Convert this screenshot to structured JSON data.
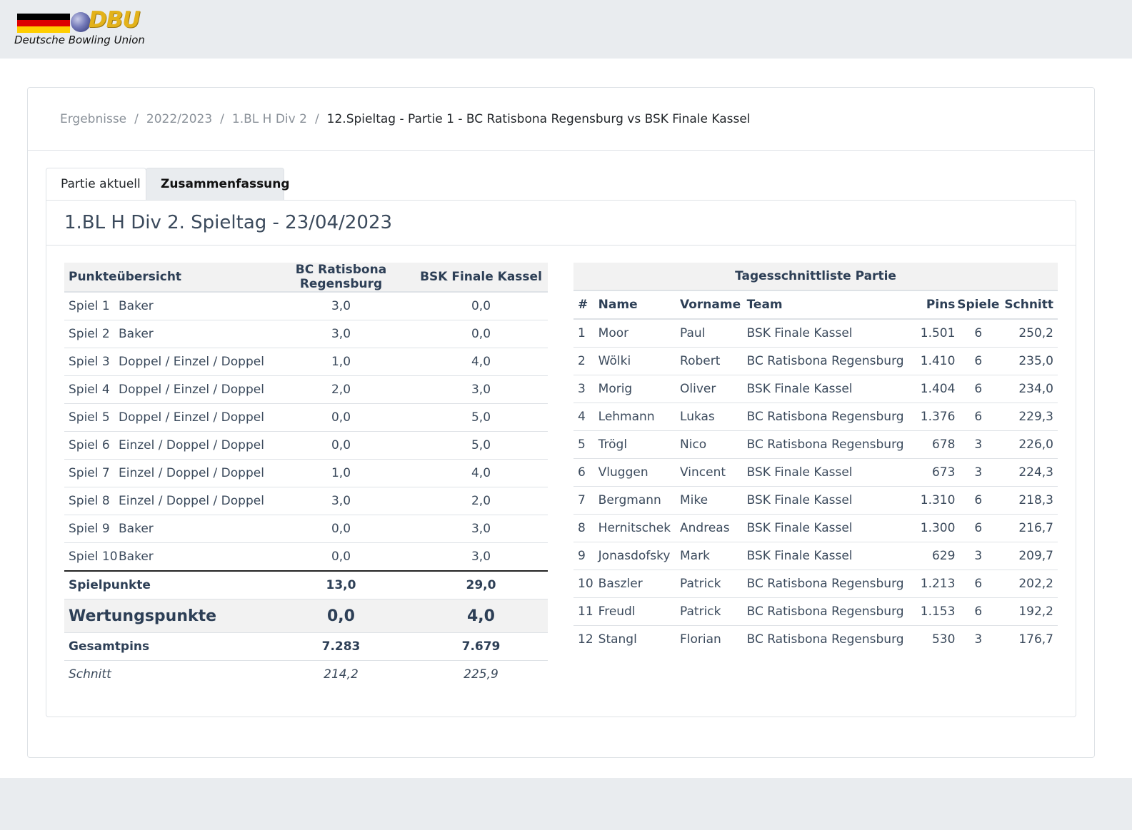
{
  "logo": {
    "text": "DBU",
    "subtitle": "Deutsche Bowling Union"
  },
  "breadcrumb": {
    "items": [
      "Ergebnisse",
      "2022/2023",
      "1.BL H Div 2"
    ],
    "separator": "/",
    "active": "12.Spieltag - Partie 1 - BC Ratisbona Regensburg vs BSK Finale Kassel"
  },
  "tabs": [
    {
      "label": "Partie aktuell"
    },
    {
      "label": "Zusammenfassung"
    }
  ],
  "panel_title": "1.BL H Div 2. Spieltag - 23/04/2023",
  "points": {
    "header": {
      "title": "Punkteübersicht",
      "team1": "BC Ratisbona Regensburg",
      "team2": "BSK Finale Kassel"
    },
    "rows": [
      {
        "game": "Spiel 1",
        "mode": "Baker",
        "t1": "3,0",
        "t2": "0,0"
      },
      {
        "game": "Spiel 2",
        "mode": "Baker",
        "t1": "3,0",
        "t2": "0,0"
      },
      {
        "game": "Spiel 3",
        "mode": "Doppel / Einzel / Doppel",
        "t1": "1,0",
        "t2": "4,0"
      },
      {
        "game": "Spiel 4",
        "mode": "Doppel / Einzel / Doppel",
        "t1": "2,0",
        "t2": "3,0"
      },
      {
        "game": "Spiel 5",
        "mode": "Doppel / Einzel / Doppel",
        "t1": "0,0",
        "t2": "5,0"
      },
      {
        "game": "Spiel 6",
        "mode": "Einzel / Doppel / Doppel",
        "t1": "0,0",
        "t2": "5,0"
      },
      {
        "game": "Spiel 7",
        "mode": "Einzel / Doppel / Doppel",
        "t1": "1,0",
        "t2": "4,0"
      },
      {
        "game": "Spiel 8",
        "mode": "Einzel / Doppel / Doppel",
        "t1": "3,0",
        "t2": "2,0"
      },
      {
        "game": "Spiel 9",
        "mode": "Baker",
        "t1": "0,0",
        "t2": "3,0"
      },
      {
        "game": "Spiel 10",
        "mode": "Baker",
        "t1": "0,0",
        "t2": "3,0"
      }
    ],
    "spielpunkte": {
      "label": "Spielpunkte",
      "t1": "13,0",
      "t2": "29,0"
    },
    "wertungspunkte": {
      "label": "Wertungspunkte",
      "t1": "0,0",
      "t2": "4,0"
    },
    "gesamtpins": {
      "label": "Gesamtpins",
      "t1": "7.283",
      "t2": "7.679"
    },
    "schnitt": {
      "label": "Schnitt",
      "t1": "214,2",
      "t2": "225,9"
    }
  },
  "averages": {
    "title": "Tagesschnittliste Partie",
    "columns": [
      "#",
      "Name",
      "Vorname",
      "Team",
      "Pins",
      "Spiele",
      "Schnitt"
    ],
    "rows": [
      {
        "rank": "1",
        "name": "Moor",
        "first": "Paul",
        "team": "BSK Finale Kassel",
        "pins": "1.501",
        "games": "6",
        "avg": "250,2"
      },
      {
        "rank": "2",
        "name": "Wölki",
        "first": "Robert",
        "team": "BC Ratisbona Regensburg",
        "pins": "1.410",
        "games": "6",
        "avg": "235,0"
      },
      {
        "rank": "3",
        "name": "Morig",
        "first": "Oliver",
        "team": "BSK Finale Kassel",
        "pins": "1.404",
        "games": "6",
        "avg": "234,0"
      },
      {
        "rank": "4",
        "name": "Lehmann",
        "first": "Lukas",
        "team": "BC Ratisbona Regensburg",
        "pins": "1.376",
        "games": "6",
        "avg": "229,3"
      },
      {
        "rank": "5",
        "name": "Trögl",
        "first": "Nico",
        "team": "BC Ratisbona Regensburg",
        "pins": "678",
        "games": "3",
        "avg": "226,0"
      },
      {
        "rank": "6",
        "name": "Vluggen",
        "first": "Vincent",
        "team": "BSK Finale Kassel",
        "pins": "673",
        "games": "3",
        "avg": "224,3"
      },
      {
        "rank": "7",
        "name": "Bergmann",
        "first": "Mike",
        "team": "BSK Finale Kassel",
        "pins": "1.310",
        "games": "6",
        "avg": "218,3"
      },
      {
        "rank": "8",
        "name": "Hernitschek",
        "first": "Andreas",
        "team": "BSK Finale Kassel",
        "pins": "1.300",
        "games": "6",
        "avg": "216,7"
      },
      {
        "rank": "9",
        "name": "Jonasdofsky",
        "first": "Mark",
        "team": "BSK Finale Kassel",
        "pins": "629",
        "games": "3",
        "avg": "209,7"
      },
      {
        "rank": "10",
        "name": "Baszler",
        "first": "Patrick",
        "team": "BC Ratisbona Regensburg",
        "pins": "1.213",
        "games": "6",
        "avg": "202,2"
      },
      {
        "rank": "11",
        "name": "Freudl",
        "first": "Patrick",
        "team": "BC Ratisbona Regensburg",
        "pins": "1.153",
        "games": "6",
        "avg": "192,2"
      },
      {
        "rank": "12",
        "name": "Stangl",
        "first": "Florian",
        "team": "BC Ratisbona Regensburg",
        "pins": "530",
        "games": "3",
        "avg": "176,7"
      }
    ]
  },
  "colors": {
    "flag_black": "#000000",
    "flag_red": "#dd0000",
    "flag_gold": "#ffce00",
    "logo_gold": "#e3b21a"
  }
}
